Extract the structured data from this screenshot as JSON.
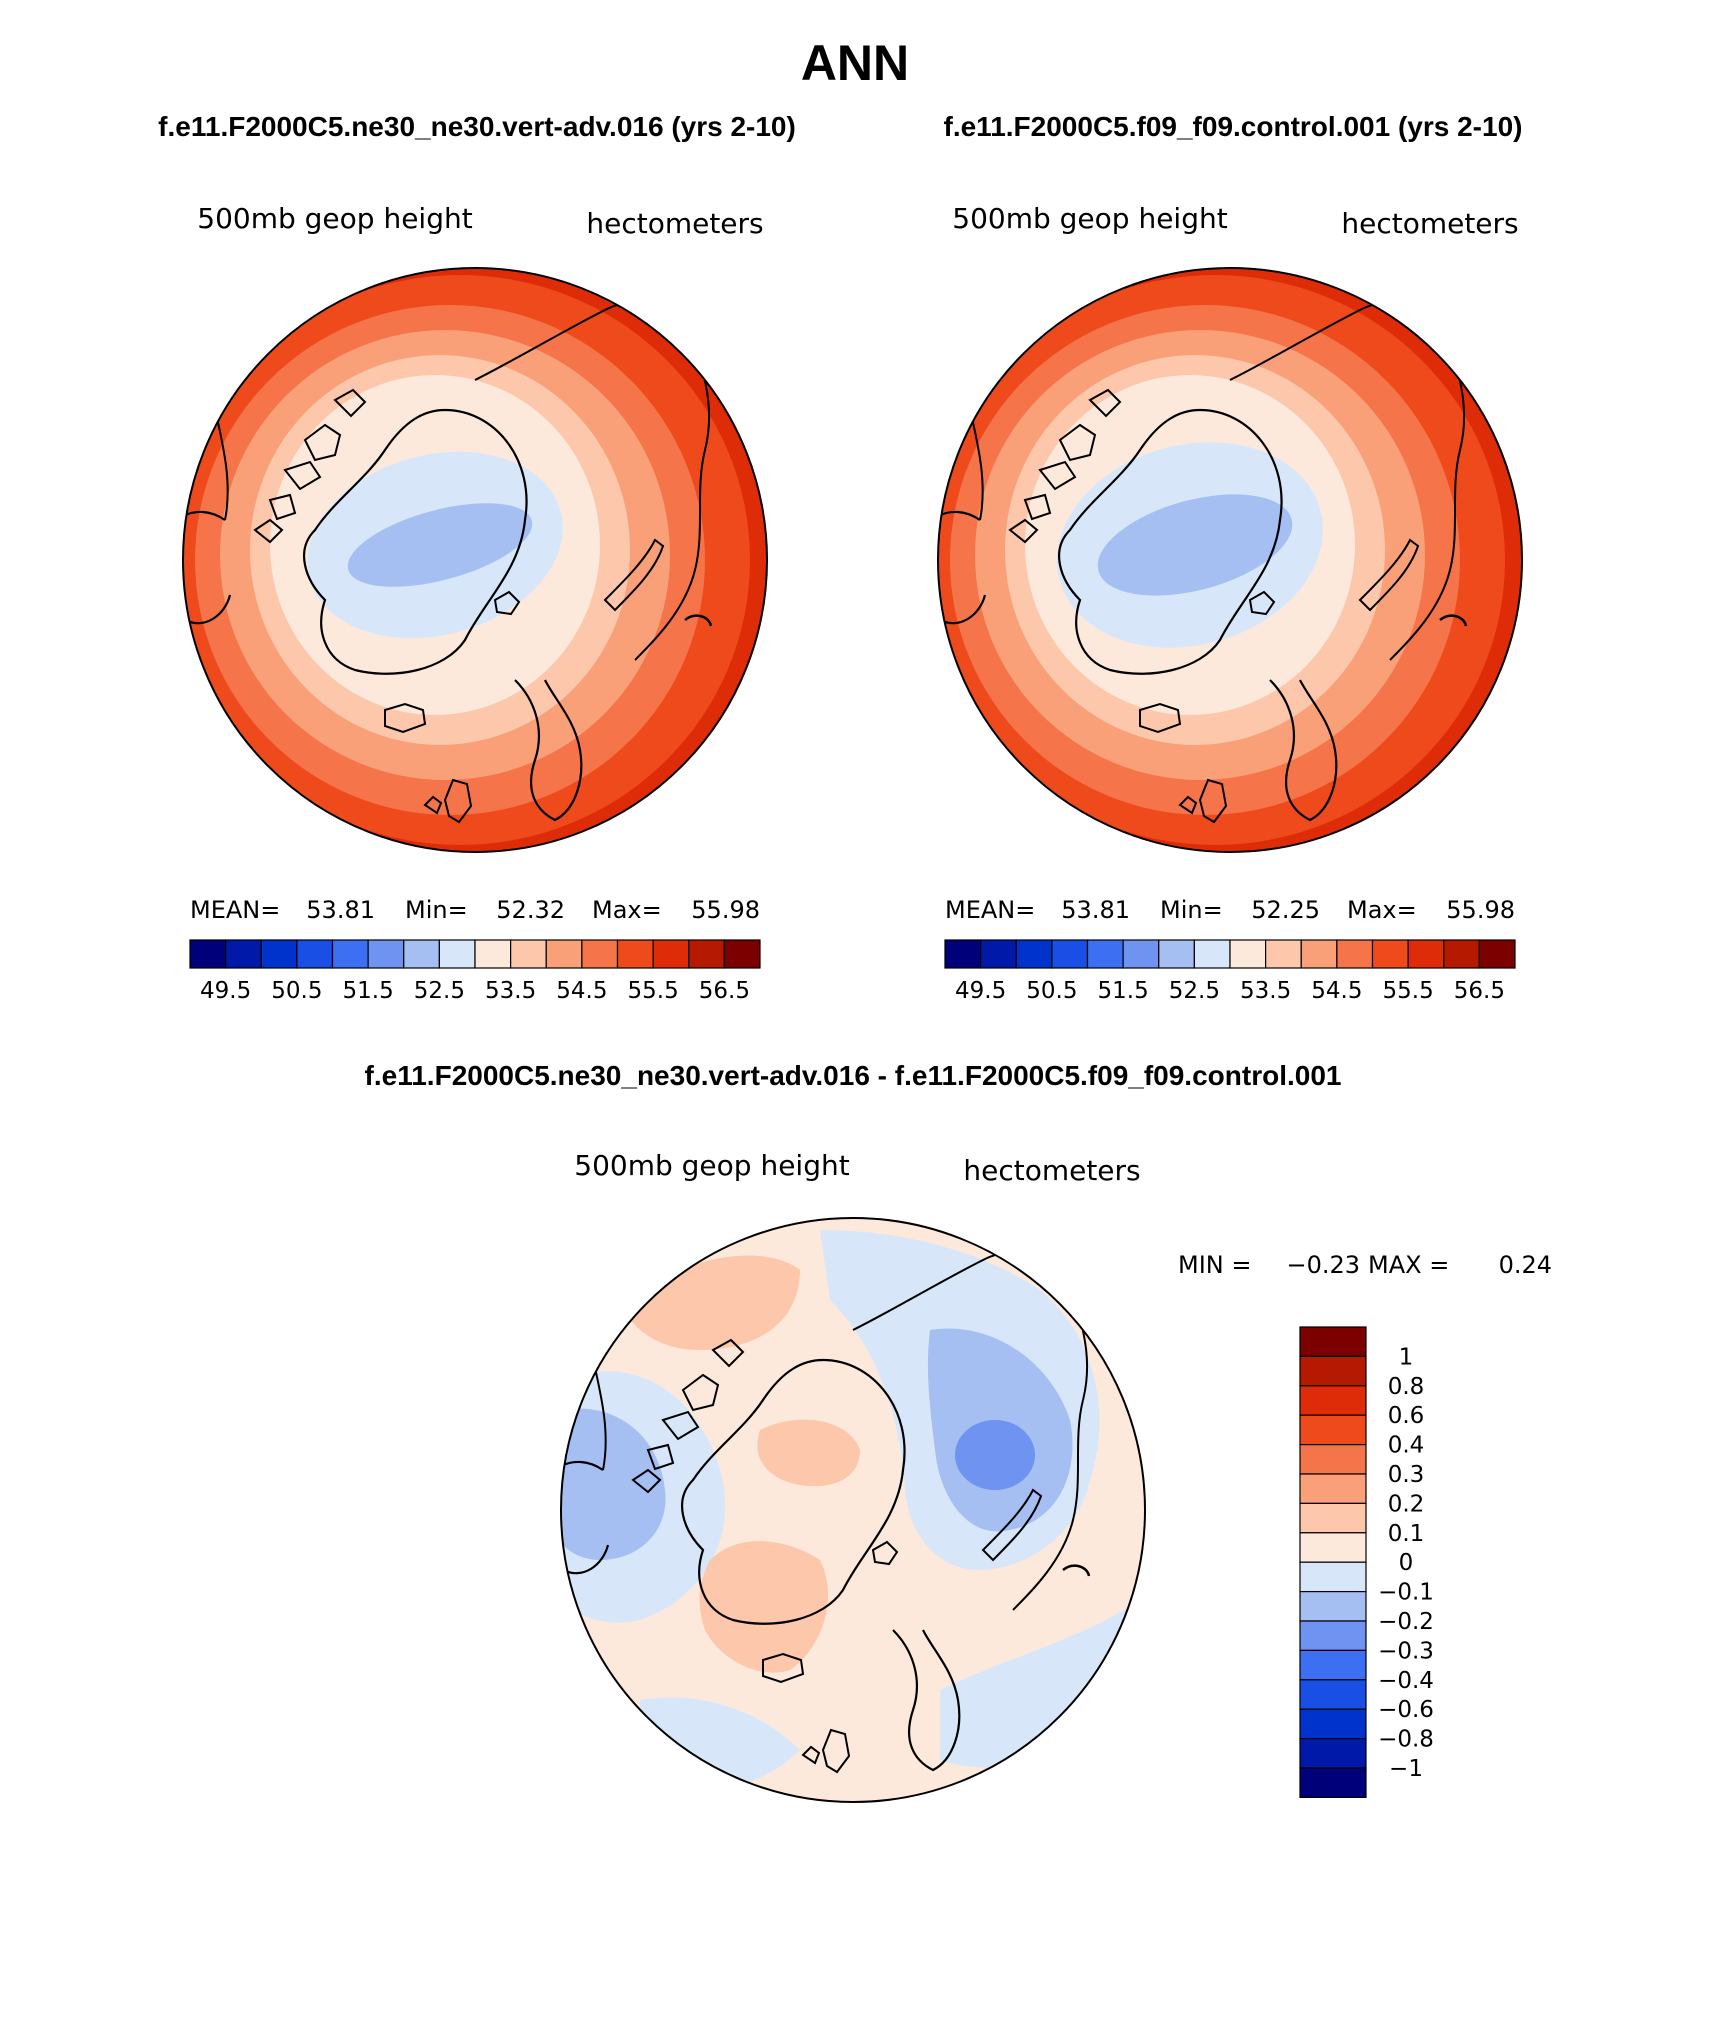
{
  "figure": {
    "title": "ANN",
    "left_title": "f.e11.F2000C5.ne30_ne30.vert-adv.016 (yrs 2-10)",
    "right_title": "f.e11.F2000C5.f09_f09.control.001 (yrs 2-10)",
    "diff_title": "f.e11.F2000C5.ne30_ne30.vert-adv.016 - f.e11.F2000C5.f09_f09.control.001"
  },
  "chart_data": [
    {
      "type": "heatmap",
      "projection": "polar-stereographic-north",
      "variable": "500mb geop height",
      "units": "hectometers",
      "stats": {
        "mean_label": "MEAN=",
        "mean": "53.81",
        "min_label": "Min=",
        "min": "52.32",
        "max_label": "Max=",
        "max": "55.98"
      },
      "levels": [
        49.5,
        50,
        50.5,
        51,
        51.5,
        52,
        52.5,
        53,
        53.5,
        54,
        54.5,
        55,
        55.5,
        56,
        56.5
      ],
      "tick_labels": [
        "49.5",
        "50.5",
        "51.5",
        "52.5",
        "53.5",
        "54.5",
        "55.5",
        "56.5"
      ],
      "colors": [
        "#00007a",
        "#0019a8",
        "#0033cc",
        "#1a4fe6",
        "#3d6ff2",
        "#6e93f0",
        "#a5bff3",
        "#d7e7f9",
        "#fde9dc",
        "#fcc7aa",
        "#f9a078",
        "#f57449",
        "#ee4a1c",
        "#dd2c07",
        "#b51a00",
        "#7c0000"
      ]
    },
    {
      "type": "heatmap",
      "projection": "polar-stereographic-north",
      "variable": "500mb geop height",
      "units": "hectometers",
      "stats": {
        "mean_label": "MEAN=",
        "mean": "53.81",
        "min_label": "Min=",
        "min": "52.25",
        "max_label": "Max=",
        "max": "55.98"
      },
      "levels": [
        49.5,
        50,
        50.5,
        51,
        51.5,
        52,
        52.5,
        53,
        53.5,
        54,
        54.5,
        55,
        55.5,
        56,
        56.5
      ],
      "tick_labels": [
        "49.5",
        "50.5",
        "51.5",
        "52.5",
        "53.5",
        "54.5",
        "55.5",
        "56.5"
      ],
      "colors": [
        "#00007a",
        "#0019a8",
        "#0033cc",
        "#1a4fe6",
        "#3d6ff2",
        "#6e93f0",
        "#a5bff3",
        "#d7e7f9",
        "#fde9dc",
        "#fcc7aa",
        "#f9a078",
        "#f57449",
        "#ee4a1c",
        "#dd2c07",
        "#b51a00",
        "#7c0000"
      ]
    },
    {
      "type": "heatmap",
      "projection": "polar-stereographic-north",
      "variable": "500mb geop height",
      "units": "hectometers",
      "stats": {
        "min_label": "MIN =",
        "min": "−0.23",
        "max_label": "MAX =",
        "max": "0.24"
      },
      "levels": [
        -1,
        -0.8,
        -0.6,
        -0.4,
        -0.3,
        -0.2,
        -0.1,
        0,
        0.1,
        0.2,
        0.3,
        0.4,
        0.6,
        0.8,
        1
      ],
      "tick_labels": [
        "1",
        "0.8",
        "0.6",
        "0.4",
        "0.3",
        "0.2",
        "0.1",
        "0",
        "−0.1",
        "−0.2",
        "−0.3",
        "−0.4",
        "−0.6",
        "−0.8",
        "−1"
      ],
      "colors": [
        "#00007a",
        "#0019a8",
        "#0033cc",
        "#1a4fe6",
        "#3d6ff2",
        "#6e93f0",
        "#a5bff3",
        "#d7e7f9",
        "#fde9dc",
        "#fcc7aa",
        "#f9a078",
        "#f57449",
        "#ee4a1c",
        "#dd2c07",
        "#b51a00",
        "#7c0000"
      ]
    }
  ]
}
